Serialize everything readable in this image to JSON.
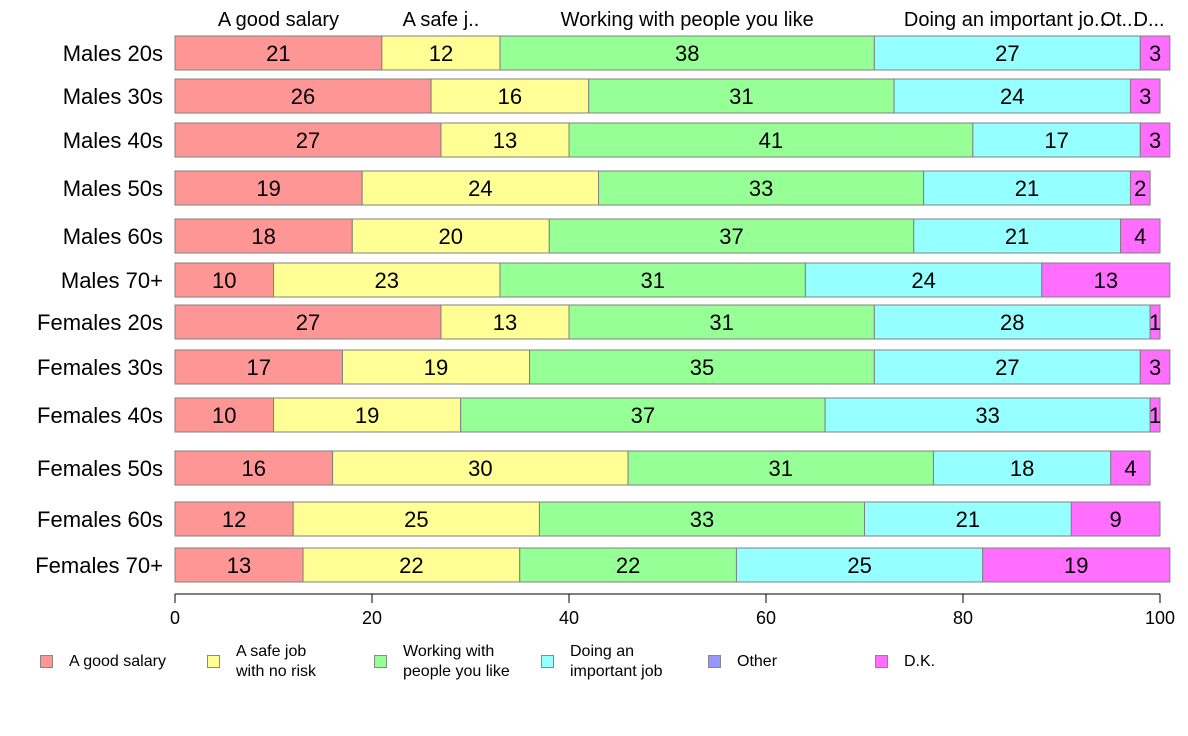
{
  "chart_data": {
    "type": "bar",
    "orientation": "horizontal",
    "stacked": true,
    "categories": [
      "Males 20s",
      "Males 30s",
      "Males 40s",
      "Males 50s",
      "Males 60s",
      "Males 70+",
      "Females 20s",
      "Females 30s",
      "Females 40s",
      "Females 50s",
      "Females 60s",
      "Females 70+"
    ],
    "series": [
      {
        "name": "A good salary",
        "color": "#ff9696",
        "values": [
          21,
          26,
          27,
          19,
          18,
          10,
          27,
          17,
          10,
          16,
          12,
          13
        ]
      },
      {
        "name": "A safe job with no risk",
        "color": "#ffff96",
        "values": [
          12,
          16,
          13,
          24,
          20,
          23,
          13,
          19,
          19,
          30,
          25,
          22
        ]
      },
      {
        "name": "Working with people you like",
        "color": "#96ff96",
        "values": [
          38,
          31,
          41,
          33,
          37,
          31,
          31,
          35,
          37,
          31,
          33,
          22
        ]
      },
      {
        "name": "Doing an important job",
        "color": "#96ffff",
        "values": [
          27,
          24,
          17,
          21,
          21,
          24,
          28,
          27,
          33,
          18,
          21,
          25
        ]
      },
      {
        "name": "Other",
        "color": "#9696ff",
        "values": [
          0,
          0,
          0,
          0,
          0,
          0,
          0,
          0,
          0,
          0,
          0,
          0
        ]
      },
      {
        "name": "D.K.",
        "color": "#ff6eff",
        "values": [
          3,
          3,
          3,
          2,
          4,
          13,
          1,
          3,
          1,
          4,
          9,
          19
        ]
      }
    ],
    "top_labels": [
      "A good salary",
      "A safe j..",
      "Working with people you like",
      "Doing an important jo...",
      "Ot...",
      "D..."
    ],
    "xlim": [
      0,
      100
    ],
    "xticks": [
      "0",
      "20",
      "40",
      "60",
      "80",
      "100"
    ],
    "legend": {
      "placement": "bottom",
      "items": [
        {
          "lines": [
            "A good salary"
          ],
          "color": "#ff9696"
        },
        {
          "lines": [
            "A safe job",
            "with no risk"
          ],
          "color": "#ffff96"
        },
        {
          "lines": [
            "Working with",
            "people you like"
          ],
          "color": "#96ff96"
        },
        {
          "lines": [
            "Doing an",
            "important job"
          ],
          "color": "#96ffff"
        },
        {
          "lines": [
            "Other"
          ],
          "color": "#9696ff"
        },
        {
          "lines": [
            "D.K."
          ],
          "color": "#ff6eff"
        }
      ]
    },
    "grid": false
  }
}
